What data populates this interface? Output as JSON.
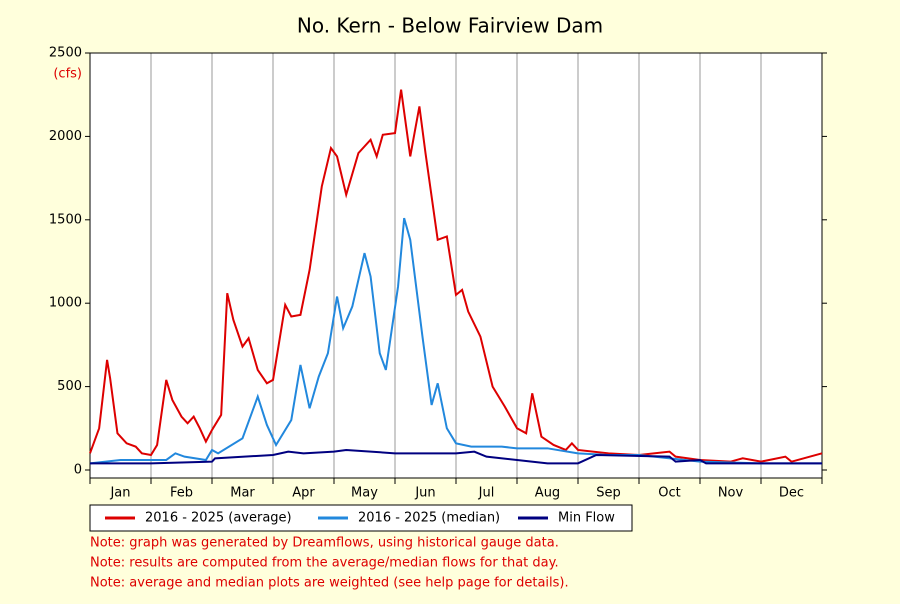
{
  "chart_data": {
    "type": "line",
    "title": "No. Kern - Below Fairview Dam",
    "y_unit": "(cfs)",
    "categories": [
      "Jan",
      "Feb",
      "Mar",
      "Apr",
      "May",
      "Jun",
      "Jul",
      "Aug",
      "Sep",
      "Oct",
      "Nov",
      "Dec"
    ],
    "xlim": [
      0,
      12
    ],
    "xticks": [
      0,
      1,
      2,
      3,
      4,
      5,
      6,
      7,
      8,
      9,
      10,
      11,
      12
    ],
    "ylim": [
      0,
      2500
    ],
    "yticks": [
      0,
      500,
      1000,
      1500,
      2000,
      2500
    ],
    "grid": true,
    "series": [
      {
        "name": "2016 - 2025 (average)",
        "color": "#dd0000",
        "x": [
          0,
          0.15,
          0.28,
          0.33,
          0.45,
          0.6,
          0.75,
          0.85,
          1.0,
          1.1,
          1.25,
          1.35,
          1.5,
          1.6,
          1.7,
          1.8,
          1.9,
          2.0,
          2.15,
          2.25,
          2.35,
          2.5,
          2.6,
          2.75,
          2.9,
          3.0,
          3.2,
          3.3,
          3.45,
          3.6,
          3.8,
          3.95,
          4.05,
          4.2,
          4.4,
          4.6,
          4.7,
          4.8,
          5.0,
          5.1,
          5.25,
          5.4,
          5.5,
          5.7,
          5.85,
          6.0,
          6.1,
          6.2,
          6.4,
          6.6,
          6.8,
          7.0,
          7.15,
          7.25,
          7.4,
          7.6,
          7.8,
          7.9,
          8.0,
          8.5,
          9.0,
          9.5,
          9.6,
          10.0,
          10.5,
          10.7,
          11.0,
          11.4,
          11.5,
          12.0
        ],
        "values": [
          100,
          250,
          660,
          550,
          220,
          160,
          140,
          100,
          90,
          150,
          540,
          420,
          320,
          280,
          320,
          250,
          170,
          240,
          330,
          1060,
          900,
          740,
          790,
          600,
          520,
          540,
          990,
          920,
          930,
          1200,
          1700,
          1930,
          1880,
          1650,
          1900,
          1980,
          1880,
          2010,
          2020,
          2280,
          1880,
          2180,
          1900,
          1380,
          1400,
          1050,
          1080,
          950,
          800,
          500,
          380,
          250,
          220,
          460,
          200,
          150,
          120,
          160,
          120,
          100,
          90,
          110,
          80,
          60,
          50,
          70,
          50,
          80,
          50,
          100
        ]
      },
      {
        "name": "2016 - 2025 (median)",
        "color": "#2288dd",
        "x": [
          0,
          0.5,
          1.0,
          1.25,
          1.4,
          1.55,
          1.9,
          2.0,
          2.1,
          2.5,
          2.75,
          2.9,
          3.05,
          3.3,
          3.45,
          3.6,
          3.75,
          3.9,
          4.05,
          4.15,
          4.3,
          4.5,
          4.6,
          4.75,
          4.85,
          5.05,
          5.15,
          5.25,
          5.45,
          5.6,
          5.7,
          5.85,
          6.0,
          6.25,
          6.5,
          6.75,
          7.0,
          7.5,
          8.0,
          8.5,
          9.0,
          10.0,
          11.0,
          12.0
        ],
        "values": [
          40,
          60,
          60,
          60,
          100,
          80,
          60,
          120,
          100,
          190,
          440,
          270,
          150,
          300,
          630,
          370,
          560,
          700,
          1040,
          850,
          980,
          1300,
          1160,
          700,
          600,
          1100,
          1510,
          1380,
          800,
          390,
          520,
          250,
          160,
          140,
          140,
          140,
          130,
          130,
          100,
          90,
          90,
          50,
          40,
          40
        ]
      },
      {
        "name": "Min Flow",
        "color": "#000080",
        "x": [
          0,
          1.0,
          2.0,
          2.05,
          3.0,
          3.25,
          3.5,
          4.0,
          4.2,
          5.0,
          6.0,
          6.3,
          6.5,
          7.0,
          7.5,
          8.0,
          8.3,
          9.5,
          9.6,
          10.0,
          10.1,
          12.0
        ],
        "values": [
          40,
          40,
          50,
          70,
          90,
          110,
          100,
          110,
          120,
          100,
          100,
          110,
          80,
          60,
          40,
          40,
          90,
          80,
          50,
          60,
          40,
          40
        ]
      }
    ],
    "notes": [
      "Note: graph was generated by Dreamflows, using historical gauge data.",
      "Note: results are computed from the average/median flows for that day.",
      "Note: average and median plots are weighted (see help page for details)."
    ]
  }
}
